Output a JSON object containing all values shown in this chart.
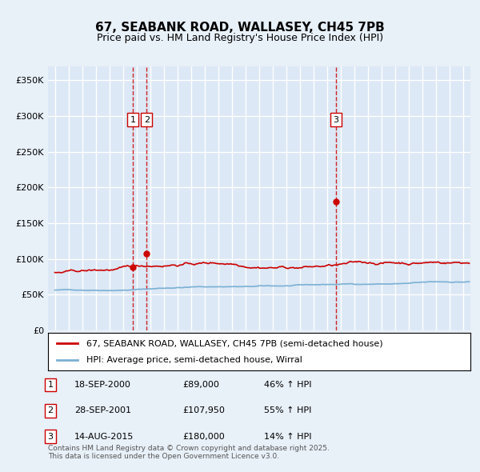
{
  "title": "67, SEABANK ROAD, WALLASEY, CH45 7PB",
  "subtitle": "Price paid vs. HM Land Registry's House Price Index (HPI)",
  "bg_color": "#e8f0f8",
  "plot_bg_color": "#dce8f5",
  "grid_color": "#ffffff",
  "red_line_color": "#cc0000",
  "blue_line_color": "#7ab0d4",
  "sale_marker_color": "#cc0000",
  "vline_color": "#cc0000",
  "ylabel_values": [
    "£0",
    "£50K",
    "£100K",
    "£150K",
    "£200K",
    "£250K",
    "£300K",
    "£350K"
  ],
  "ylim": [
    0,
    370000
  ],
  "xlim_start": 1994.5,
  "xlim_end": 2025.5,
  "sales": [
    {
      "date_year": 2000.72,
      "price": 89000,
      "label": "1"
    },
    {
      "date_year": 2001.74,
      "price": 107950,
      "label": "2"
    },
    {
      "date_year": 2015.62,
      "price": 180000,
      "label": "3"
    }
  ],
  "legend_entries": [
    {
      "label": "67, SEABANK ROAD, WALLASEY, CH45 7PB (semi-detached house)",
      "color": "#cc0000"
    },
    {
      "label": "HPI: Average price, semi-detached house, Wirral",
      "color": "#7ab0d4"
    }
  ],
  "table_rows": [
    {
      "num": "1",
      "date": "18-SEP-2000",
      "price": "£89,000",
      "hpi": "46% ↑ HPI"
    },
    {
      "num": "2",
      "date": "28-SEP-2001",
      "price": "£107,950",
      "hpi": "55% ↑ HPI"
    },
    {
      "num": "3",
      "date": "14-AUG-2015",
      "price": "£180,000",
      "hpi": "14% ↑ HPI"
    }
  ],
  "footer": "Contains HM Land Registry data © Crown copyright and database right 2025.\nThis data is licensed under the Open Government Licence v3.0."
}
